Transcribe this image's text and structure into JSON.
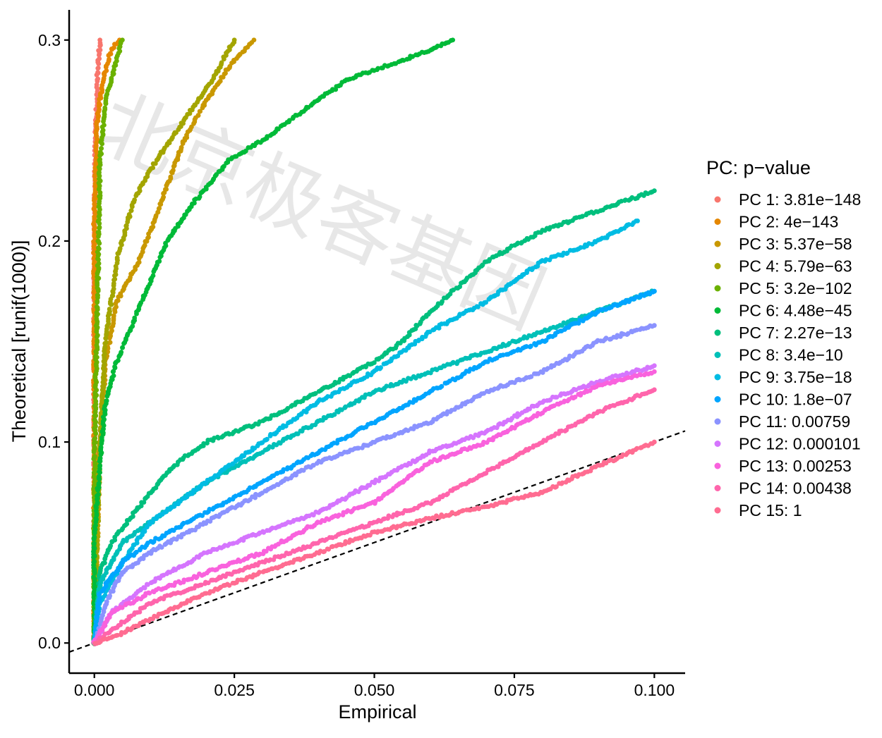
{
  "chart_data": {
    "type": "scatter",
    "title": "",
    "xlabel": "Empirical",
    "ylabel": "Theoretical [runif(1000)]",
    "xlim": [
      -0.0045,
      0.1055
    ],
    "ylim": [
      -0.015,
      0.315
    ],
    "x_ticks": [
      0,
      0.025,
      0.05,
      0.075,
      0.1
    ],
    "x_tick_labels": [
      "0.000",
      "0.025",
      "0.050",
      "0.075",
      "0.100"
    ],
    "y_ticks": [
      0,
      0.1,
      0.2,
      0.3
    ],
    "y_tick_labels": [
      "0.0",
      "0.1",
      "0.2",
      "0.3"
    ],
    "grid": false,
    "legend_position": "right",
    "legend_title": "PC: p−value",
    "reference_line": {
      "type": "identity",
      "style": "dashed",
      "color": "#000000"
    },
    "watermark": "北京极客基因",
    "series": [
      {
        "name": "PC 1: 3.81e−148",
        "color": "#F8766D",
        "points": [
          [
            0,
            0
          ],
          [
            0,
            0.2
          ],
          [
            0.0002,
            0.25
          ],
          [
            0.0005,
            0.28
          ],
          [
            0.001,
            0.3
          ]
        ]
      },
      {
        "name": "PC 2: 4e−143",
        "color": "#E58700",
        "points": [
          [
            0,
            0
          ],
          [
            0,
            0.21
          ],
          [
            0.0005,
            0.26
          ],
          [
            0.0015,
            0.28
          ],
          [
            0.003,
            0.295
          ],
          [
            0.0045,
            0.3
          ]
        ]
      },
      {
        "name": "PC 3: 5.37e−58",
        "color": "#C99800",
        "points": [
          [
            0,
            0
          ],
          [
            0.001,
            0.1
          ],
          [
            0.002,
            0.14
          ],
          [
            0.004,
            0.17
          ],
          [
            0.008,
            0.19
          ],
          [
            0.012,
            0.22
          ],
          [
            0.016,
            0.25
          ],
          [
            0.02,
            0.27
          ],
          [
            0.025,
            0.29
          ],
          [
            0.0285,
            0.3
          ]
        ]
      },
      {
        "name": "PC 4: 5.79e−63",
        "color": "#A3A500",
        "points": [
          [
            0,
            0
          ],
          [
            0.001,
            0.1
          ],
          [
            0.002,
            0.15
          ],
          [
            0.004,
            0.19
          ],
          [
            0.007,
            0.22
          ],
          [
            0.011,
            0.24
          ],
          [
            0.016,
            0.26
          ],
          [
            0.021,
            0.28
          ],
          [
            0.025,
            0.3
          ]
        ]
      },
      {
        "name": "PC 5: 3.2e−102",
        "color": "#6BB100",
        "points": [
          [
            0,
            0
          ],
          [
            0,
            0.09
          ],
          [
            0.0005,
            0.16
          ],
          [
            0.001,
            0.24
          ],
          [
            0.002,
            0.27
          ],
          [
            0.004,
            0.29
          ],
          [
            0.005,
            0.3
          ]
        ]
      },
      {
        "name": "PC 6: 4.48e−45",
        "color": "#00BA38",
        "points": [
          [
            0,
            0
          ],
          [
            0,
            0.05
          ],
          [
            0.001,
            0.09
          ],
          [
            0.002,
            0.12
          ],
          [
            0.004,
            0.14
          ],
          [
            0.007,
            0.16
          ],
          [
            0.01,
            0.18
          ],
          [
            0.013,
            0.2
          ],
          [
            0.018,
            0.22
          ],
          [
            0.024,
            0.24
          ],
          [
            0.03,
            0.25
          ],
          [
            0.035,
            0.26
          ],
          [
            0.04,
            0.27
          ],
          [
            0.045,
            0.28
          ],
          [
            0.05,
            0.285
          ],
          [
            0.055,
            0.29
          ],
          [
            0.06,
            0.295
          ],
          [
            0.064,
            0.3
          ]
        ]
      },
      {
        "name": "PC 7: 2.27e−13",
        "color": "#00BF7D",
        "points": [
          [
            0,
            0
          ],
          [
            0.001,
            0.035
          ],
          [
            0.003,
            0.05
          ],
          [
            0.01,
            0.075
          ],
          [
            0.015,
            0.09
          ],
          [
            0.02,
            0.1
          ],
          [
            0.03,
            0.11
          ],
          [
            0.04,
            0.125
          ],
          [
            0.05,
            0.14
          ],
          [
            0.055,
            0.15
          ],
          [
            0.06,
            0.165
          ],
          [
            0.07,
            0.19
          ],
          [
            0.08,
            0.205
          ],
          [
            0.09,
            0.215
          ],
          [
            0.1,
            0.225
          ]
        ]
      },
      {
        "name": "PC 8: 3.4e−10",
        "color": "#00C0B8",
        "points": [
          [
            0,
            0
          ],
          [
            0.001,
            0.03
          ],
          [
            0.005,
            0.05
          ],
          [
            0.01,
            0.06
          ],
          [
            0.02,
            0.08
          ],
          [
            0.03,
            0.095
          ],
          [
            0.04,
            0.11
          ],
          [
            0.05,
            0.125
          ],
          [
            0.06,
            0.135
          ],
          [
            0.07,
            0.145
          ],
          [
            0.08,
            0.155
          ],
          [
            0.09,
            0.165
          ],
          [
            0.1,
            0.175
          ]
        ]
      },
      {
        "name": "PC 9: 3.75e−18",
        "color": "#00BCE3",
        "points": [
          [
            0,
            0
          ],
          [
            0.001,
            0.02
          ],
          [
            0.005,
            0.04
          ],
          [
            0.01,
            0.06
          ],
          [
            0.02,
            0.08
          ],
          [
            0.03,
            0.1
          ],
          [
            0.04,
            0.12
          ],
          [
            0.05,
            0.135
          ],
          [
            0.06,
            0.155
          ],
          [
            0.07,
            0.17
          ],
          [
            0.08,
            0.19
          ],
          [
            0.09,
            0.2
          ],
          [
            0.097,
            0.21
          ]
        ]
      },
      {
        "name": "PC 10: 1.8e−07",
        "color": "#00A5FF",
        "points": [
          [
            0,
            0
          ],
          [
            0.001,
            0.025
          ],
          [
            0.005,
            0.04
          ],
          [
            0.01,
            0.05
          ],
          [
            0.02,
            0.065
          ],
          [
            0.03,
            0.08
          ],
          [
            0.04,
            0.095
          ],
          [
            0.05,
            0.11
          ],
          [
            0.06,
            0.125
          ],
          [
            0.07,
            0.14
          ],
          [
            0.08,
            0.15
          ],
          [
            0.09,
            0.165
          ],
          [
            0.1,
            0.175
          ]
        ]
      },
      {
        "name": "PC 11: 0.00759",
        "color": "#8B93FF",
        "points": [
          [
            0,
            0
          ],
          [
            0.002,
            0.02
          ],
          [
            0.005,
            0.035
          ],
          [
            0.01,
            0.045
          ],
          [
            0.02,
            0.06
          ],
          [
            0.03,
            0.075
          ],
          [
            0.04,
            0.09
          ],
          [
            0.05,
            0.1
          ],
          [
            0.06,
            0.11
          ],
          [
            0.07,
            0.125
          ],
          [
            0.08,
            0.135
          ],
          [
            0.09,
            0.15
          ],
          [
            0.1,
            0.158
          ]
        ]
      },
      {
        "name": "PC 12: 0.000101",
        "color": "#D575FE",
        "points": [
          [
            0,
            0
          ],
          [
            0.003,
            0.015
          ],
          [
            0.01,
            0.03
          ],
          [
            0.02,
            0.045
          ],
          [
            0.03,
            0.055
          ],
          [
            0.04,
            0.065
          ],
          [
            0.05,
            0.08
          ],
          [
            0.06,
            0.095
          ],
          [
            0.07,
            0.105
          ],
          [
            0.08,
            0.12
          ],
          [
            0.09,
            0.13
          ],
          [
            0.1,
            0.138
          ]
        ]
      },
      {
        "name": "PC 13: 0.00253",
        "color": "#F962DD",
        "points": [
          [
            0,
            0
          ],
          [
            0.003,
            0.015
          ],
          [
            0.01,
            0.025
          ],
          [
            0.02,
            0.035
          ],
          [
            0.03,
            0.045
          ],
          [
            0.04,
            0.06
          ],
          [
            0.05,
            0.07
          ],
          [
            0.06,
            0.09
          ],
          [
            0.07,
            0.1
          ],
          [
            0.08,
            0.115
          ],
          [
            0.09,
            0.128
          ],
          [
            0.1,
            0.135
          ]
        ]
      },
      {
        "name": "PC 14: 0.00438",
        "color": "#FF65AC",
        "points": [
          [
            0,
            0
          ],
          [
            0.005,
            0.01
          ],
          [
            0.01,
            0.02
          ],
          [
            0.02,
            0.03
          ],
          [
            0.03,
            0.04
          ],
          [
            0.04,
            0.05
          ],
          [
            0.05,
            0.06
          ],
          [
            0.06,
            0.07
          ],
          [
            0.07,
            0.085
          ],
          [
            0.08,
            0.1
          ],
          [
            0.09,
            0.115
          ],
          [
            0.1,
            0.126
          ]
        ]
      },
      {
        "name": "PC 15: 1",
        "color": "#FF6C91",
        "points": [
          [
            0,
            0
          ],
          [
            0.005,
            0.005
          ],
          [
            0.01,
            0.012
          ],
          [
            0.02,
            0.025
          ],
          [
            0.03,
            0.035
          ],
          [
            0.04,
            0.045
          ],
          [
            0.05,
            0.055
          ],
          [
            0.06,
            0.062
          ],
          [
            0.07,
            0.068
          ],
          [
            0.08,
            0.075
          ],
          [
            0.09,
            0.088
          ],
          [
            0.1,
            0.1
          ]
        ]
      }
    ]
  }
}
